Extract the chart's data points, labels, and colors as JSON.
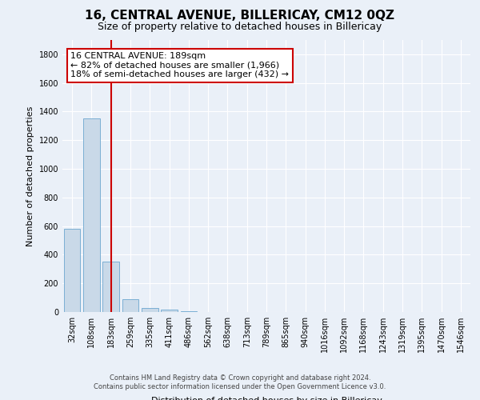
{
  "title": "16, CENTRAL AVENUE, BILLERICAY, CM12 0QZ",
  "subtitle": "Size of property relative to detached houses in Billericay",
  "xlabel": "Distribution of detached houses by size in Billericay",
  "ylabel": "Number of detached properties",
  "categories": [
    "32sqm",
    "108sqm",
    "183sqm",
    "259sqm",
    "335sqm",
    "411sqm",
    "486sqm",
    "562sqm",
    "638sqm",
    "713sqm",
    "789sqm",
    "865sqm",
    "940sqm",
    "1016sqm",
    "1092sqm",
    "1168sqm",
    "1243sqm",
    "1319sqm",
    "1395sqm",
    "1470sqm",
    "1546sqm"
  ],
  "values": [
    580,
    1350,
    350,
    90,
    30,
    15,
    5,
    0,
    0,
    0,
    0,
    0,
    0,
    0,
    0,
    0,
    0,
    0,
    0,
    0,
    0
  ],
  "bar_color": "#c9d9e8",
  "bar_edge_color": "#7bafd4",
  "vline_x_idx": 2,
  "vline_color": "#cc0000",
  "annotation_line1": "16 CENTRAL AVENUE: 189sqm",
  "annotation_line2": "← 82% of detached houses are smaller (1,966)",
  "annotation_line3": "18% of semi-detached houses are larger (432) →",
  "annotation_box_color": "#ffffff",
  "annotation_box_edge_color": "#cc0000",
  "ylim": [
    0,
    1900
  ],
  "yticks": [
    0,
    200,
    400,
    600,
    800,
    1000,
    1200,
    1400,
    1600,
    1800
  ],
  "footer_line1": "Contains HM Land Registry data © Crown copyright and database right 2024.",
  "footer_line2": "Contains public sector information licensed under the Open Government Licence v3.0.",
  "bg_color": "#eaf0f8",
  "grid_color": "#ffffff",
  "title_fontsize": 11,
  "subtitle_fontsize": 9,
  "tick_fontsize": 7,
  "ylabel_fontsize": 8,
  "xlabel_fontsize": 8,
  "annotation_fontsize": 8,
  "footer_fontsize": 6
}
